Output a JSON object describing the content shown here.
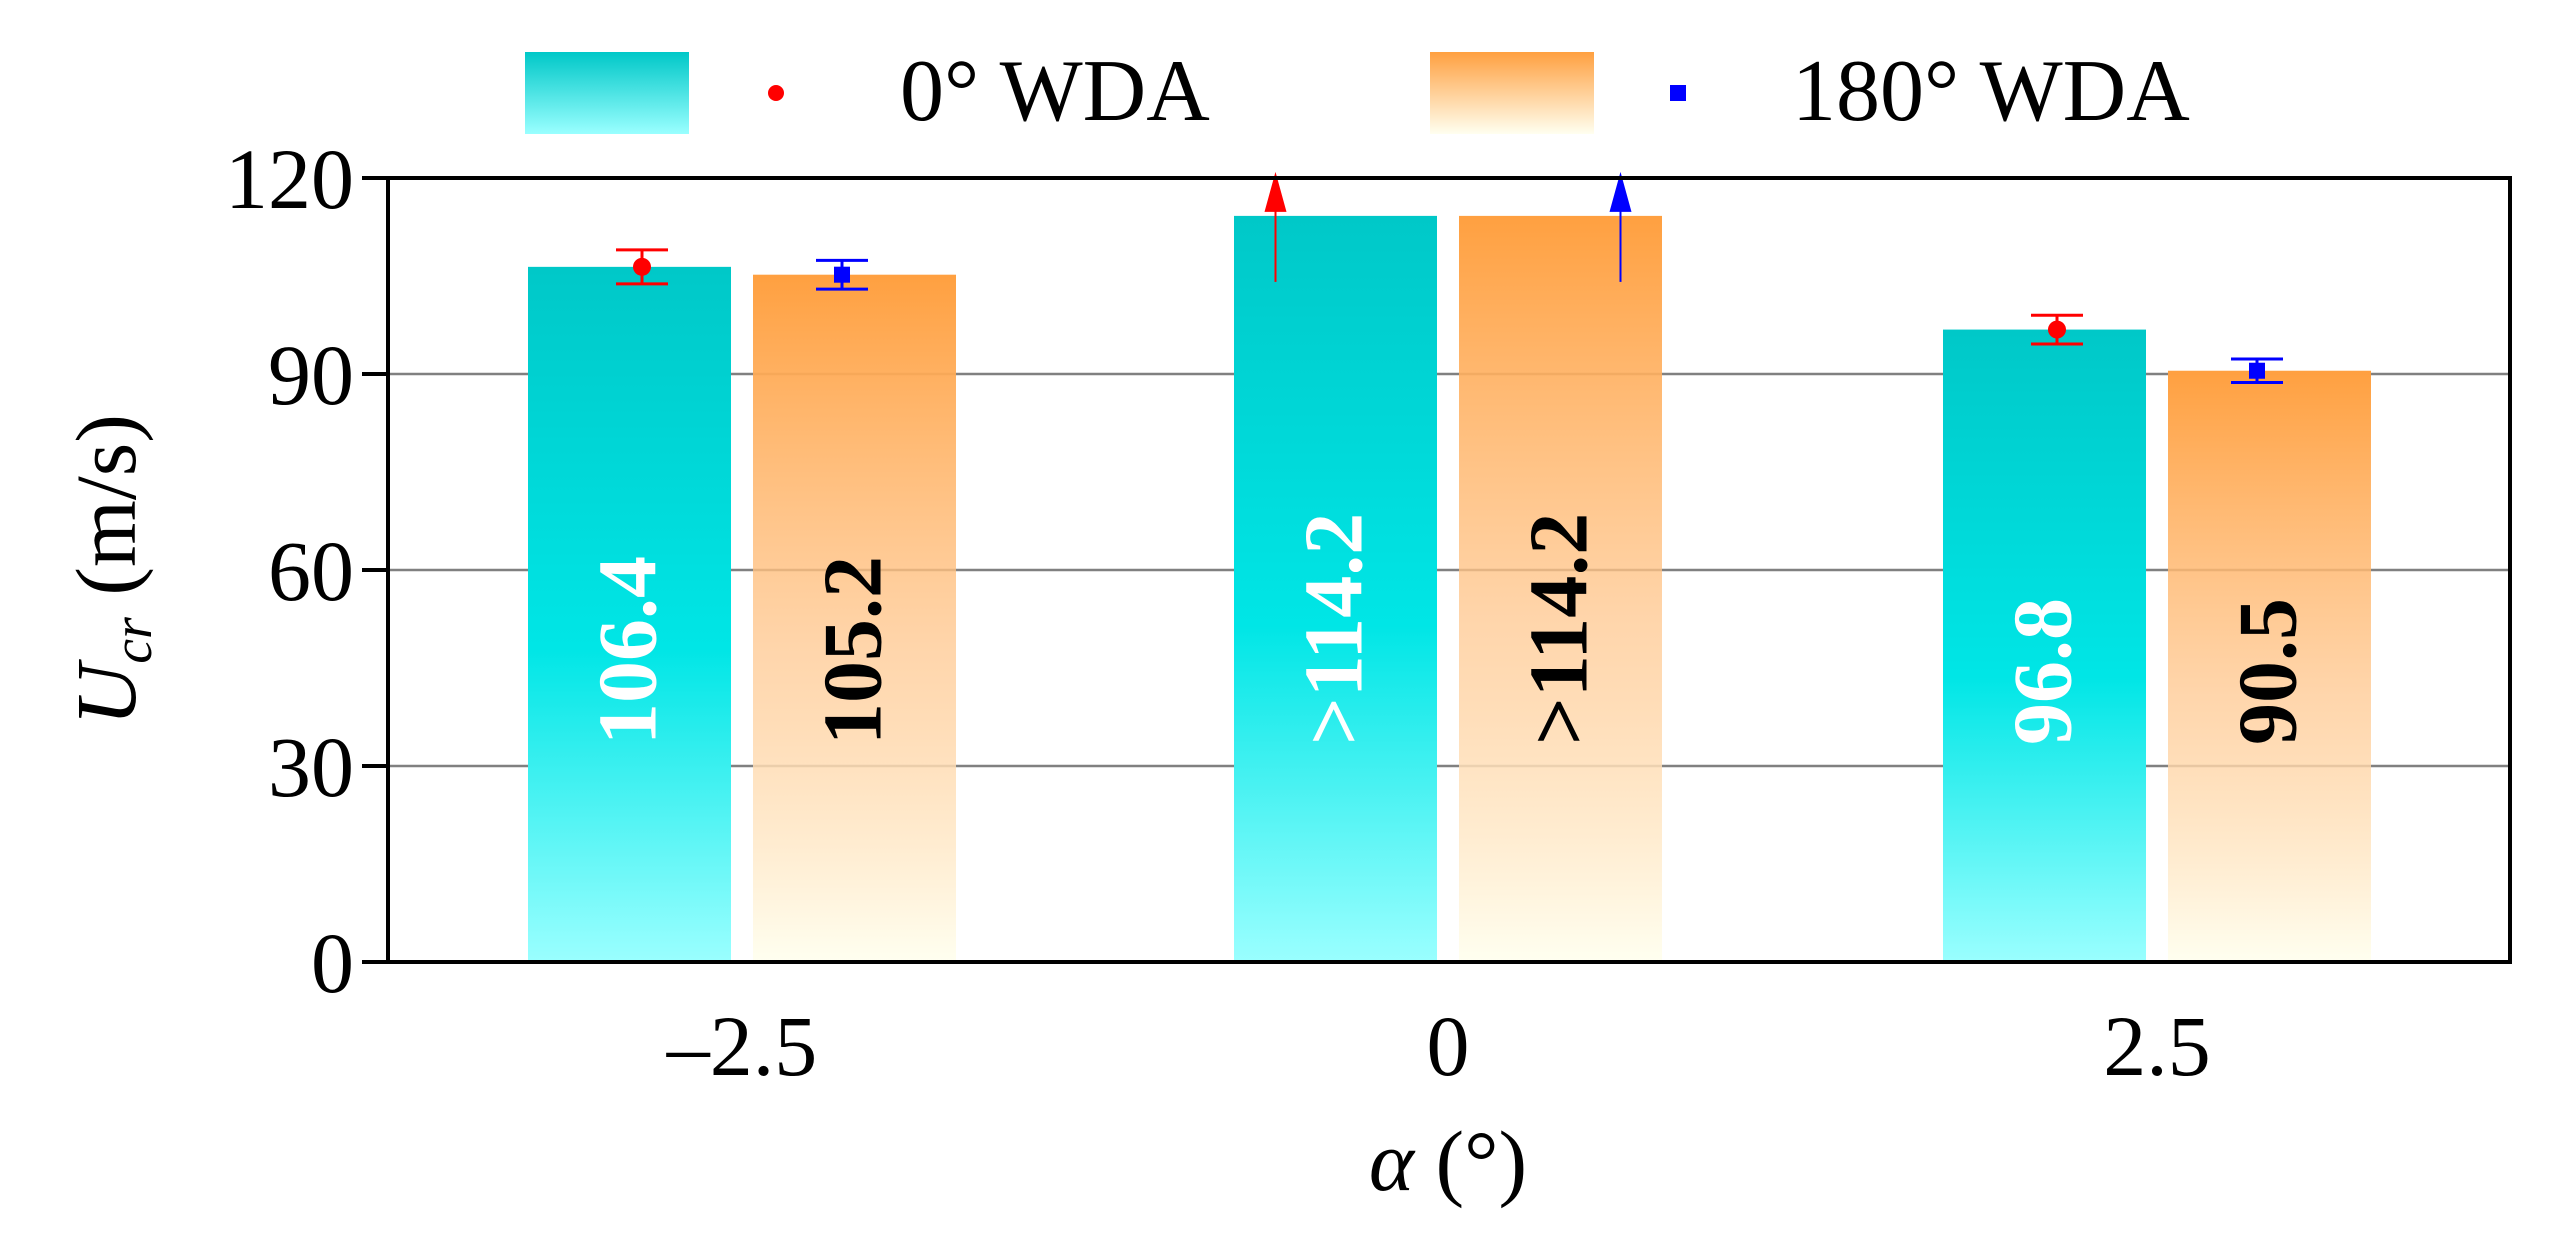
{
  "chart_data": {
    "type": "bar",
    "xlabel": "α (°)",
    "ylabel": "U_cr (m/s)",
    "ylabel_main": "U",
    "ylabel_sub": "cr",
    "ylabel_units": " (m/s)",
    "xlabel_symbol": "α",
    "xlabel_units": " (°)",
    "ylim": [
      0,
      120
    ],
    "yticks": [
      0,
      30,
      60,
      90,
      120
    ],
    "ytick_labels": [
      "0",
      "30",
      "60",
      "90",
      "120"
    ],
    "grid": true,
    "legend_position": "top",
    "categories": [
      "–2.5",
      "0",
      "2.5"
    ],
    "series": [
      {
        "name": "0° WDA",
        "color_top": "#00C8C8",
        "color_mid": "#00E6E6",
        "color_bottom": "#9AFFFF",
        "marker_color": "#FF0000",
        "marker": "circle",
        "values": [
          106.4,
          114.2,
          96.8
        ],
        "labels": [
          "106.4",
          ">114.2",
          "96.8"
        ],
        "label_color": "#FFFFFF",
        "error": [
          2.6,
          null,
          2.2
        ],
        "exceeds": [
          false,
          true,
          false
        ]
      },
      {
        "name": "180° WDA",
        "color_top": "#FFA040",
        "color_mid": "#FFC890",
        "color_bottom": "#FFFFF0",
        "marker_color": "#0000FF",
        "marker": "square",
        "values": [
          105.2,
          114.2,
          90.5
        ],
        "labels": [
          "105.2",
          ">114.2",
          "90.5"
        ],
        "label_color": "#000000",
        "error": [
          2.2,
          null,
          1.8
        ],
        "exceeds": [
          false,
          true,
          false
        ]
      }
    ]
  }
}
